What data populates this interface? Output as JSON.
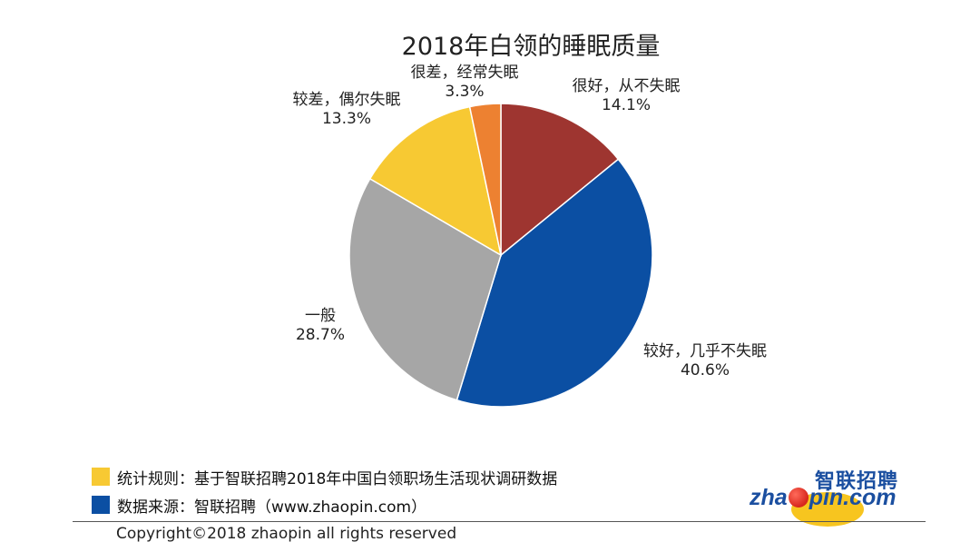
{
  "chart_data": {
    "type": "pie",
    "title": "2018年白领的睡眠质量",
    "slices": [
      {
        "label": "很好，从不失眠",
        "value": 14.1,
        "value_label": "14.1%",
        "color": "#9e3530"
      },
      {
        "label": "较好，几乎不失眠",
        "value": 40.6,
        "value_label": "40.6%",
        "color": "#0b4fa3"
      },
      {
        "label": "一般",
        "value": 28.7,
        "value_label": "28.7%",
        "color": "#a6a6a6"
      },
      {
        "label": "较差，偶尔失眠",
        "value": 13.3,
        "value_label": "13.3%",
        "color": "#f7c933"
      },
      {
        "label": "很差，经常失眠",
        "value": 3.3,
        "value_label": "3.3%",
        "color": "#ed8131"
      }
    ],
    "start_angle": "12 o'clock",
    "direction": "clockwise"
  },
  "footer": {
    "legend": [
      {
        "text": "统计规则：基于智联招聘2018年中国白领职场生活现状调研数据",
        "color": "#f7c933"
      },
      {
        "text": "数据来源：智联招聘（www.zhaopin.com）",
        "color": "#0b4fa3"
      }
    ],
    "copyright": "Copyright©2018 zhaopin all rights reserved"
  },
  "logo": {
    "cn": "智联招聘",
    "en_prefix": "zha",
    "en_suffix": "pin.com"
  }
}
